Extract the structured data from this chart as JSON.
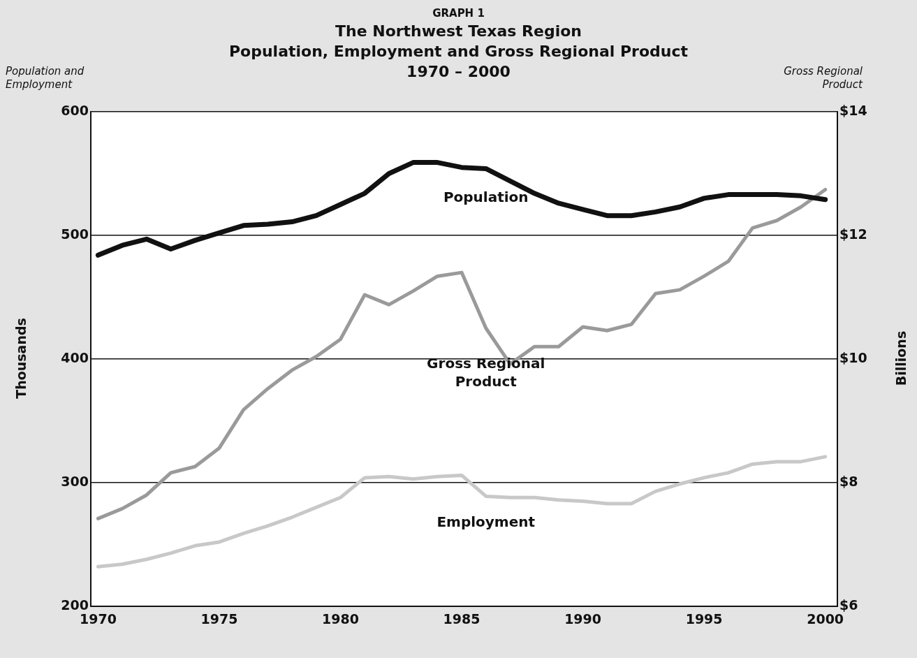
{
  "chart_data": {
    "type": "line",
    "title": "GRAPH 1",
    "subtitle": "The Northwest Texas Region\nPopulation, Employment and Gross Regional Product\n1970 – 2000",
    "ylabel": "Thousands",
    "y2label": "Billions",
    "annotations": [
      "Population and Employment",
      "Gross Regional Product"
    ],
    "x": [
      1970,
      1971,
      1972,
      1973,
      1974,
      1975,
      1976,
      1977,
      1978,
      1979,
      1980,
      1981,
      1982,
      1983,
      1984,
      1985,
      1986,
      1987,
      1988,
      1989,
      1990,
      1991,
      1992,
      1993,
      1994,
      1995,
      1996,
      1997,
      1998,
      1999,
      2000
    ],
    "series": [
      {
        "name": "Population",
        "color": "#111111",
        "values": [
          484,
          492,
          497,
          489,
          496,
          502,
          508,
          509,
          511,
          516,
          525,
          534,
          550,
          559,
          559,
          555,
          554,
          544,
          534,
          526,
          521,
          516,
          516,
          519,
          523,
          530,
          533,
          533,
          533,
          532,
          529
        ]
      },
      {
        "name": "Gross Regional Product",
        "color": "#9a9a9a",
        "axis": "y2",
        "values": [
          7.42,
          7.58,
          7.8,
          8.16,
          8.26,
          8.56,
          9.18,
          9.52,
          9.82,
          10.04,
          10.32,
          11.04,
          10.88,
          11.1,
          11.34,
          11.4,
          10.5,
          9.92,
          10.2,
          10.2,
          10.52,
          10.46,
          10.56,
          11.06,
          11.12,
          11.34,
          11.58,
          12.12,
          12.24,
          12.46,
          12.74
        ]
      },
      {
        "name": "Employment",
        "color": "#c8c8c8",
        "values": [
          232,
          234,
          238,
          243,
          249,
          252,
          259,
          265,
          272,
          280,
          288,
          304,
          305,
          303,
          305,
          306,
          289,
          288,
          288,
          286,
          285,
          283,
          283,
          293,
          299,
          304,
          308,
          315,
          317,
          317,
          321
        ]
      }
    ],
    "xlim": [
      1969.7,
      2000.5
    ],
    "xticks": [
      1970,
      1975,
      1980,
      1985,
      1990,
      1995,
      2000
    ],
    "ylim": [
      200,
      600
    ],
    "yticks": [
      200,
      300,
      400,
      500,
      600
    ],
    "y2lim": [
      6,
      14
    ],
    "y2ticks": [
      {
        "value": 6,
        "label": "$6"
      },
      {
        "value": 8,
        "label": "$8"
      },
      {
        "value": 10,
        "label": "$10"
      },
      {
        "value": 12,
        "label": "$12"
      },
      {
        "value": 14,
        "label": "$14"
      }
    ],
    "grid": "y",
    "legend": false,
    "marker": "none",
    "line_style": "solid"
  }
}
